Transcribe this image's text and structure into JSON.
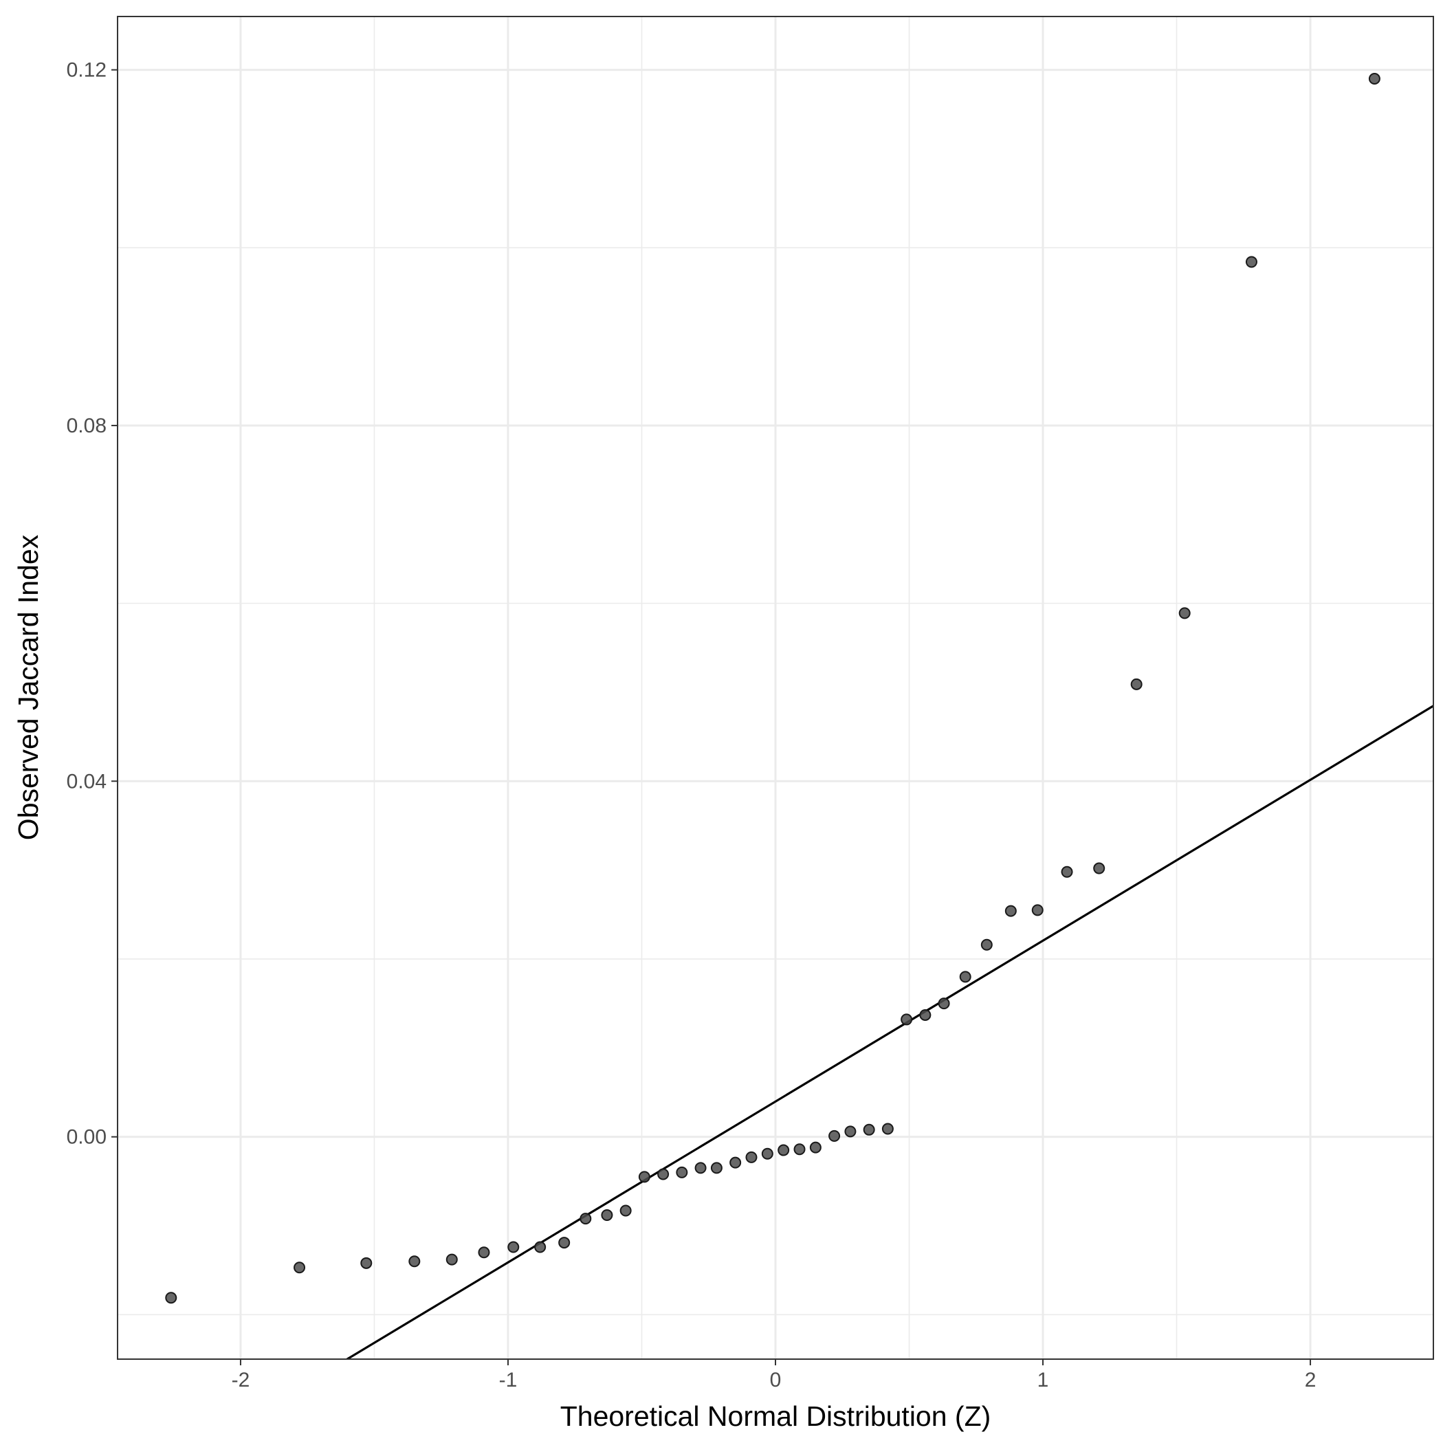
{
  "chart_data": {
    "type": "scatter",
    "title": "",
    "xlabel": "Theoretical Normal Distribution (Z)",
    "ylabel": "Observed Jaccard Index",
    "xlim": [
      -2.46,
      2.46
    ],
    "ylim": [
      -0.025,
      0.126
    ],
    "x_ticks": [
      -2,
      -1,
      0,
      1,
      2
    ],
    "x_tick_labels": [
      "-2",
      "-1",
      "0",
      "1",
      "2"
    ],
    "y_ticks": [
      0.0,
      0.04,
      0.08,
      0.12
    ],
    "y_tick_labels": [
      "0.00",
      "0.04",
      "0.08",
      "0.12"
    ],
    "grid": true,
    "points": [
      {
        "x": -2.26,
        "y": -0.0181
      },
      {
        "x": -1.78,
        "y": -0.0147
      },
      {
        "x": -1.53,
        "y": -0.0142
      },
      {
        "x": -1.35,
        "y": -0.014
      },
      {
        "x": -1.21,
        "y": -0.0138
      },
      {
        "x": -1.09,
        "y": -0.013
      },
      {
        "x": -0.98,
        "y": -0.0124
      },
      {
        "x": -0.88,
        "y": -0.0124
      },
      {
        "x": -0.79,
        "y": -0.0119
      },
      {
        "x": -0.71,
        "y": -0.0092
      },
      {
        "x": -0.63,
        "y": -0.0088
      },
      {
        "x": -0.56,
        "y": -0.0083
      },
      {
        "x": -0.49,
        "y": -0.0045
      },
      {
        "x": -0.42,
        "y": -0.0042
      },
      {
        "x": -0.35,
        "y": -0.004
      },
      {
        "x": -0.28,
        "y": -0.0035
      },
      {
        "x": -0.22,
        "y": -0.0035
      },
      {
        "x": -0.15,
        "y": -0.0029
      },
      {
        "x": -0.09,
        "y": -0.0023
      },
      {
        "x": -0.03,
        "y": -0.0019
      },
      {
        "x": 0.03,
        "y": -0.0015
      },
      {
        "x": 0.09,
        "y": -0.0014
      },
      {
        "x": 0.15,
        "y": -0.0012
      },
      {
        "x": 0.22,
        "y": 0.0001
      },
      {
        "x": 0.28,
        "y": 0.0006
      },
      {
        "x": 0.35,
        "y": 0.0008
      },
      {
        "x": 0.42,
        "y": 0.0009
      },
      {
        "x": 0.49,
        "y": 0.0132
      },
      {
        "x": 0.56,
        "y": 0.0137
      },
      {
        "x": 0.63,
        "y": 0.015
      },
      {
        "x": 0.71,
        "y": 0.018
      },
      {
        "x": 0.79,
        "y": 0.0216
      },
      {
        "x": 0.88,
        "y": 0.0254
      },
      {
        "x": 0.98,
        "y": 0.0255
      },
      {
        "x": 1.09,
        "y": 0.0298
      },
      {
        "x": 1.21,
        "y": 0.0302
      },
      {
        "x": 1.35,
        "y": 0.0509
      },
      {
        "x": 1.53,
        "y": 0.0589
      },
      {
        "x": 1.78,
        "y": 0.0984
      },
      {
        "x": 2.24,
        "y": 0.119
      }
    ],
    "reference_line": {
      "intercept": 0.00397,
      "slope": 0.01809
    },
    "colors": {
      "points": "#4d4d4d",
      "point_stroke": "#1a1a1a",
      "line": "#000000",
      "grid": "#ebebeb",
      "panel_border": "#333333"
    }
  }
}
